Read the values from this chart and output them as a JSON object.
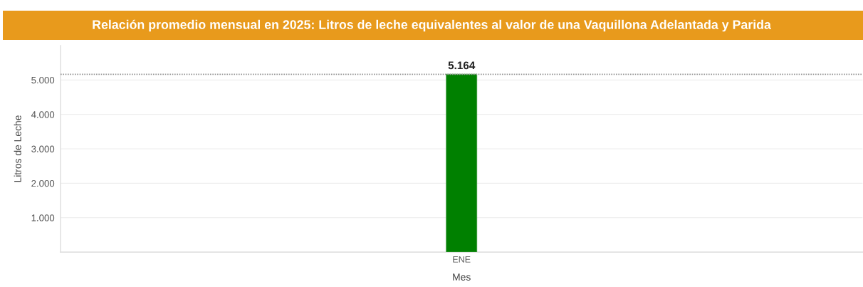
{
  "chart_data": {
    "type": "bar",
    "title": "Relación promedio mensual en 2025: Litros de leche equivalentes al valor de una Vaquillona Adelantada y Parida",
    "xlabel": "Mes",
    "ylabel": "Litros de Leche",
    "categories": [
      "ENE"
    ],
    "values": [
      5164
    ],
    "value_labels": [
      "5.164"
    ],
    "color": "#008000",
    "ylim": [
      0,
      6000
    ],
    "yticks": [
      {
        "value": 1000,
        "label": "1.000"
      },
      {
        "value": 2000,
        "label": "2.000"
      },
      {
        "value": 3000,
        "label": "3.000"
      },
      {
        "value": 4000,
        "label": "4.000"
      },
      {
        "value": 5000,
        "label": "5.000"
      }
    ],
    "ref_lines": [
      {
        "axis": "y",
        "value": 5164,
        "color": "#9a9a9a",
        "line_style": "dotted"
      }
    ],
    "grid": "y"
  }
}
